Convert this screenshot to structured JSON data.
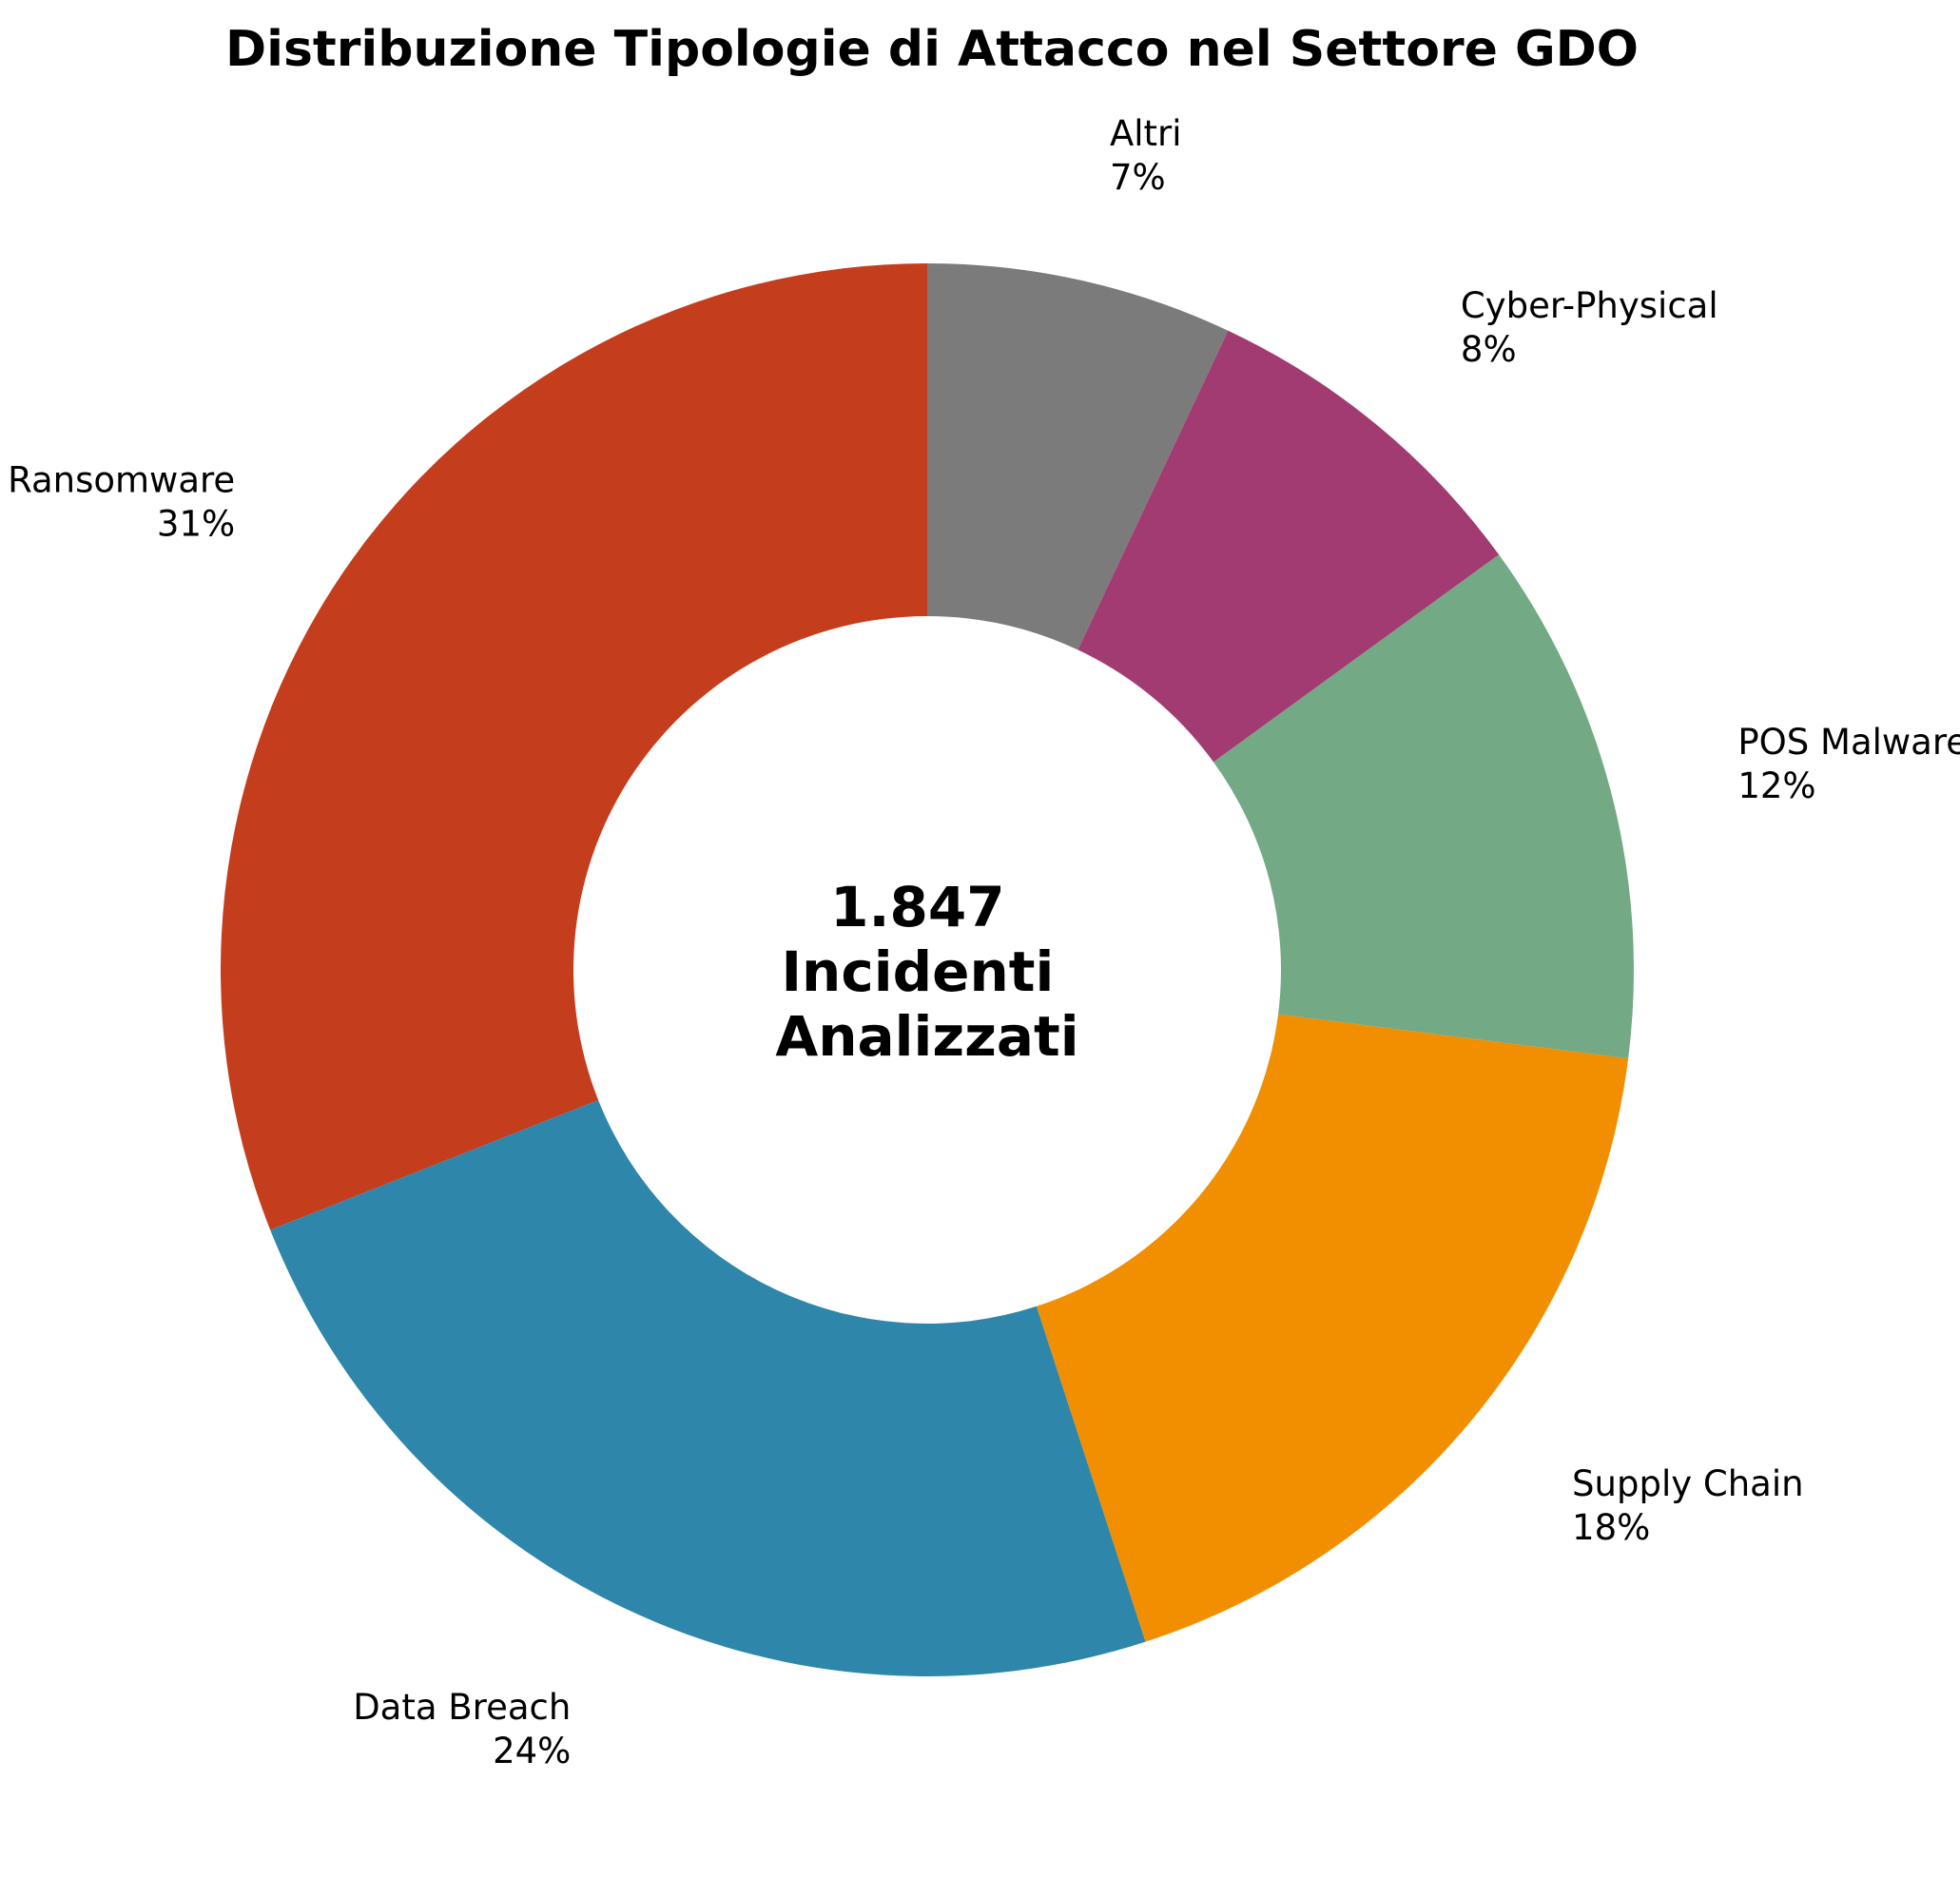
{
  "chart_data": {
    "type": "pie",
    "style": "donut",
    "title": "Distribuzione Tipologie di Attacco nel Settore GDO",
    "center_label": [
      "1.847",
      "Incidenti",
      "Analizzati"
    ],
    "start": "top",
    "direction": "counterclockwise",
    "slices": [
      {
        "label": "Ransomware",
        "value": 31,
        "display": "31%",
        "color": "#C43E1E"
      },
      {
        "label": "Data Breach",
        "value": 24,
        "display": "24%",
        "color": "#2E86AB"
      },
      {
        "label": "Supply Chain",
        "value": 18,
        "display": "18%",
        "color": "#F18F01"
      },
      {
        "label": "POS Malware",
        "value": 12,
        "display": "12%",
        "color": "#73A985"
      },
      {
        "label": "Cyber-Physical",
        "value": 8,
        "display": "8%",
        "color": "#A23B72"
      },
      {
        "label": "Altri",
        "value": 7,
        "display": "7%",
        "color": "#7B7B7B"
      }
    ]
  }
}
